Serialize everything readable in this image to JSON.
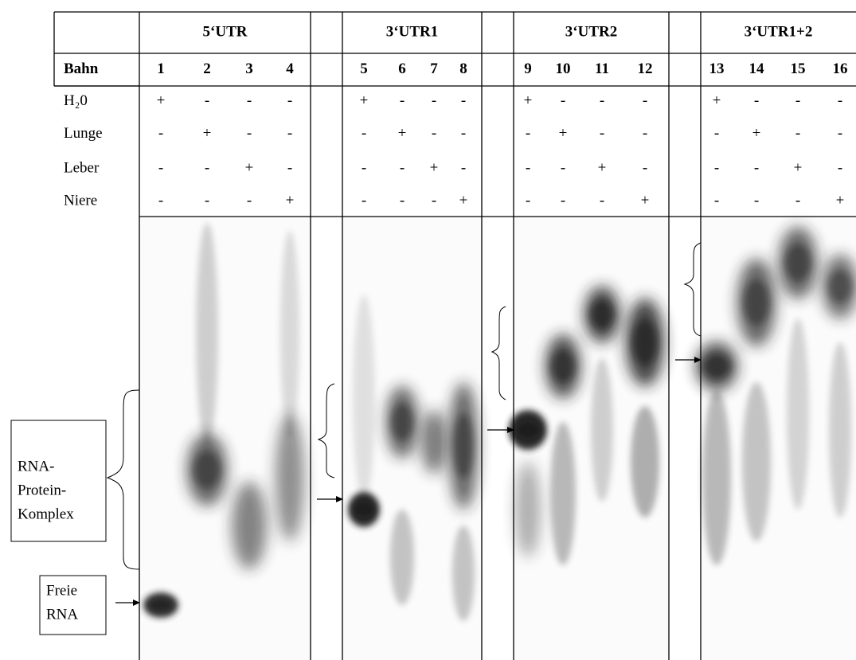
{
  "header": {
    "row_label": "Bahn"
  },
  "groups": [
    {
      "title": "5‘UTR",
      "lanes": [
        "1",
        "2",
        "3",
        "4"
      ]
    },
    {
      "title": "3‘UTR1",
      "lanes": [
        "5",
        "6",
        "7",
        "8"
      ]
    },
    {
      "title": "3‘UTR2",
      "lanes": [
        "9",
        "10",
        "11",
        "12"
      ]
    },
    {
      "title": "3‘UTR1+2",
      "lanes": [
        "13",
        "14",
        "15",
        "16"
      ]
    }
  ],
  "rows": [
    {
      "label": "H₂0",
      "cells": [
        "+",
        "-",
        "-",
        "-",
        "+",
        "-",
        "-",
        "-",
        "+",
        "-",
        "-",
        "-",
        "+",
        "-",
        "-",
        "-"
      ]
    },
    {
      "label": "Lunge",
      "cells": [
        "-",
        "+",
        "-",
        "-",
        "-",
        "+",
        "-",
        "-",
        "-",
        "+",
        "-",
        "-",
        "-",
        "+",
        "-",
        "-"
      ]
    },
    {
      "label": "Leber",
      "cells": [
        "-",
        "-",
        "+",
        "-",
        "-",
        "-",
        "+",
        "-",
        "-",
        "-",
        "+",
        "-",
        "-",
        "-",
        "+",
        "-"
      ]
    },
    {
      "label": "Niere",
      "cells": [
        "-",
        "-",
        "-",
        "+",
        "-",
        "-",
        "-",
        "+",
        "-",
        "-",
        "-",
        "+",
        "-",
        "-",
        "-",
        "+"
      ]
    }
  ],
  "annotations": {
    "complex": [
      "RNA-",
      "Protein-",
      "Komplex"
    ],
    "free": [
      "Freie",
      "RNA"
    ]
  }
}
